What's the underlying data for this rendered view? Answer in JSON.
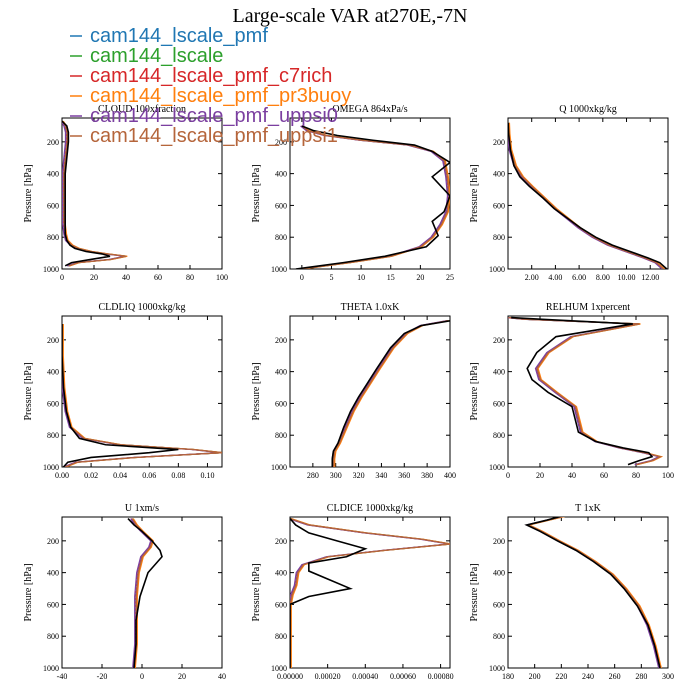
{
  "figure": {
    "title": "Large-scale VAR at270E,-7N"
  },
  "legend": [
    {
      "name": "cam144_lscale_pmf",
      "color": "#1f77b4"
    },
    {
      "name": "cam144_lscale",
      "color": "#2ca02c"
    },
    {
      "name": "cam144_lscale_pmf_c7rich",
      "color": "#d62728"
    },
    {
      "name": "cam144_lscale_pmf_pr3buoy",
      "color": "#ff7f0e"
    },
    {
      "name": "cam144_lscale_pmf_uppsi0",
      "color": "#7b3fa0"
    },
    {
      "name": "cam144_lscale_pmf_uppsi1",
      "color": "#b5653b"
    }
  ],
  "reference_color": "#000000",
  "chart_data": [
    {
      "type": "line",
      "title": "CLOUD 100xfraction",
      "ylabel": "Pressure [hPa]",
      "xlim": [
        0,
        100
      ],
      "xticks": [
        0,
        20,
        40,
        60,
        80,
        100
      ],
      "xticklabels": [
        "0",
        "20",
        "40",
        "60",
        "80",
        "100"
      ],
      "ylim": [
        1000,
        50
      ],
      "yticks": [
        200,
        400,
        600,
        800,
        1000
      ],
      "yticklabels": [
        "200",
        "400",
        "600",
        "800",
        "1000"
      ],
      "x": [
        0,
        2,
        3,
        3,
        2,
        1,
        1,
        1,
        1,
        2,
        3,
        6,
        10,
        18,
        28,
        40,
        30,
        10,
        4
      ],
      "y": [
        70,
        100,
        140,
        200,
        300,
        400,
        500,
        600,
        700,
        780,
        820,
        850,
        870,
        890,
        905,
        920,
        940,
        960,
        980
      ],
      "ref_x": [
        0,
        3,
        4,
        4,
        3,
        2,
        2,
        2,
        2,
        2,
        3,
        5,
        8,
        15,
        25,
        30,
        18,
        6,
        2
      ],
      "ref_y": [
        70,
        100,
        140,
        200,
        300,
        400,
        500,
        600,
        700,
        780,
        820,
        850,
        870,
        890,
        905,
        920,
        940,
        960,
        980
      ]
    },
    {
      "type": "line",
      "title": "OMEGA 864xPa/s",
      "ylabel": "Pressure [hPa]",
      "xlim": [
        -2,
        25
      ],
      "xticks": [
        0,
        5,
        10,
        15,
        20,
        25
      ],
      "xticklabels": [
        "0",
        "5",
        "10",
        "15",
        "20",
        "25"
      ],
      "ylim": [
        1000,
        50
      ],
      "yticks": [
        200,
        400,
        600,
        800,
        1000
      ],
      "yticklabels": [
        "200",
        "400",
        "600",
        "800",
        "1000"
      ],
      "x": [
        0,
        1,
        4,
        10,
        18,
        22,
        24,
        24.5,
        24.8,
        24.5,
        23.5,
        22,
        20,
        15,
        8,
        2,
        0
      ],
      "y": [
        100,
        130,
        160,
        190,
        220,
        260,
        320,
        420,
        540,
        640,
        720,
        800,
        860,
        920,
        960,
        990,
        1000
      ],
      "ref_x": [
        0,
        2,
        6,
        12,
        19,
        22,
        25,
        22,
        25,
        24,
        22,
        23,
        21,
        14,
        7,
        1,
        -1
      ],
      "ref_y": [
        100,
        130,
        160,
        190,
        220,
        260,
        330,
        420,
        540,
        640,
        700,
        790,
        860,
        920,
        960,
        990,
        1000
      ]
    },
    {
      "type": "line",
      "title": "Q 1000xkg/kg",
      "ylabel": "Pressure [hPa]",
      "xlim": [
        0,
        13.5
      ],
      "xticks": [
        2,
        4,
        6,
        8,
        10,
        12
      ],
      "xticklabels": [
        "2.00",
        "4.00",
        "6.00",
        "8.00",
        "10.00",
        "12.00"
      ],
      "ylim": [
        1000,
        50
      ],
      "yticks": [
        200,
        400,
        600,
        800,
        1000
      ],
      "yticklabels": [
        "200",
        "400",
        "600",
        "800",
        "1000"
      ],
      "x": [
        0.01,
        0.05,
        0.2,
        0.6,
        1.2,
        2.0,
        3.0,
        4.0,
        5.0,
        6.0,
        7.2,
        8.5,
        10.0,
        11.5,
        12.5,
        13.1
      ],
      "y": [
        80,
        150,
        250,
        350,
        420,
        480,
        550,
        620,
        680,
        740,
        800,
        850,
        890,
        930,
        960,
        1000
      ],
      "ref_x": [
        0.01,
        0.05,
        0.2,
        0.5,
        1.0,
        1.8,
        2.9,
        3.9,
        5.0,
        6.1,
        7.4,
        8.8,
        10.3,
        11.8,
        12.8,
        13.4
      ],
      "ref_y": [
        80,
        150,
        250,
        350,
        420,
        480,
        550,
        620,
        680,
        740,
        800,
        850,
        890,
        930,
        960,
        1000
      ]
    },
    {
      "type": "line",
      "title": "CLDLIQ 1000xkg/kg",
      "ylabel": "Pressure [hPa]",
      "xlim": [
        0,
        0.11
      ],
      "xticks": [
        0,
        0.02,
        0.04,
        0.06,
        0.08,
        0.1
      ],
      "xticklabels": [
        "0.00",
        "0.02",
        "0.04",
        "0.06",
        "0.08",
        "0.10"
      ],
      "ylim": [
        1000,
        50
      ],
      "yticks": [
        200,
        400,
        600,
        800,
        1000
      ],
      "yticklabels": [
        "200",
        "400",
        "600",
        "800",
        "1000"
      ],
      "x": [
        0,
        0,
        0.001,
        0.003,
        0.006,
        0.015,
        0.04,
        0.09,
        0.11,
        0.05,
        0.01,
        0.002
      ],
      "y": [
        100,
        300,
        500,
        650,
        750,
        820,
        860,
        890,
        910,
        940,
        970,
        1000
      ],
      "ref_x": [
        0,
        0,
        0.001,
        0.003,
        0.006,
        0.012,
        0.03,
        0.08,
        0.06,
        0.02,
        0.004,
        0.001
      ],
      "ref_y": [
        100,
        300,
        500,
        650,
        750,
        820,
        860,
        890,
        910,
        940,
        970,
        1000
      ]
    },
    {
      "type": "line",
      "title": "THETA 1.0xK",
      "ylabel": "Pressure [hPa]",
      "xlim": [
        260,
        400
      ],
      "xticks": [
        280,
        300,
        320,
        340,
        360,
        380,
        400
      ],
      "xticklabels": [
        "280",
        "300",
        "320",
        "340",
        "360",
        "380",
        "400"
      ],
      "ylim": [
        1000,
        50
      ],
      "yticks": [
        200,
        400,
        600,
        800,
        1000
      ],
      "yticklabels": [
        "200",
        "400",
        "600",
        "800",
        "1000"
      ],
      "x": [
        398,
        390,
        375,
        362,
        350,
        338,
        330,
        322,
        315,
        309,
        303,
        299,
        298,
        298
      ],
      "y": [
        80,
        90,
        110,
        160,
        250,
        380,
        470,
        560,
        650,
        750,
        850,
        900,
        950,
        1000
      ],
      "ref_x": [
        400,
        392,
        375,
        360,
        348,
        336,
        328,
        320,
        313,
        307,
        302,
        298,
        297,
        297
      ],
      "ref_y": [
        80,
        90,
        110,
        160,
        250,
        380,
        470,
        560,
        650,
        750,
        850,
        900,
        950,
        1000
      ]
    },
    {
      "type": "line",
      "title": "RELHUM 1xpercent",
      "ylabel": "Pressure [hPa]",
      "xlim": [
        0,
        100
      ],
      "xticks": [
        0,
        20,
        40,
        60,
        80,
        100
      ],
      "xticklabels": [
        "0",
        "20",
        "40",
        "60",
        "80",
        "100"
      ],
      "ylim": [
        1000,
        50
      ],
      "yticks": [
        200,
        400,
        600,
        800,
        1000
      ],
      "yticklabels": [
        "200",
        "400",
        "600",
        "800",
        "1000"
      ],
      "x": [
        0,
        10,
        82,
        40,
        25,
        18,
        20,
        30,
        42,
        44,
        46,
        55,
        70,
        85,
        95,
        90,
        80
      ],
      "y": [
        60,
        70,
        100,
        180,
        280,
        380,
        450,
        530,
        620,
        700,
        780,
        840,
        880,
        910,
        935,
        960,
        985
      ],
      "ref_x": [
        2,
        20,
        78,
        30,
        18,
        12,
        15,
        25,
        40,
        42,
        44,
        55,
        72,
        88,
        90,
        82,
        75
      ],
      "ref_y": [
        60,
        70,
        100,
        180,
        280,
        380,
        450,
        530,
        620,
        700,
        780,
        840,
        880,
        910,
        935,
        960,
        985
      ]
    },
    {
      "type": "line",
      "title": "U 1xm/s",
      "ylabel": "Pressure [hPa]",
      "xlim": [
        -40,
        40
      ],
      "xticks": [
        -40,
        -20,
        0,
        20,
        40
      ],
      "xticklabels": [
        "-40",
        "-20",
        "0",
        "20",
        "40"
      ],
      "ylim": [
        1000,
        50
      ],
      "yticks": [
        200,
        400,
        600,
        800,
        1000
      ],
      "yticklabels": [
        "200",
        "400",
        "600",
        "800",
        "1000"
      ],
      "x": [
        -5,
        -3,
        0,
        5,
        4,
        0,
        -2,
        -3,
        -3,
        -3,
        -4
      ],
      "y": [
        60,
        100,
        140,
        200,
        240,
        300,
        400,
        550,
        700,
        850,
        1000
      ],
      "ref_x": [
        -7,
        -4,
        0,
        5,
        9,
        10,
        3,
        -1,
        -3,
        -3,
        -4
      ],
      "ref_y": [
        60,
        100,
        140,
        200,
        260,
        300,
        400,
        550,
        700,
        850,
        1000
      ]
    },
    {
      "type": "line",
      "title": "CLDICE 1000xkg/kg",
      "ylabel": "Pressure [hPa]",
      "xlim": [
        0,
        0.00085
      ],
      "xticks": [
        0,
        0.0002,
        0.0004,
        0.0006,
        0.0008
      ],
      "xticklabels": [
        "0.00000",
        "0.00020",
        "0.00040",
        "0.00060",
        "0.00080"
      ],
      "ylim": [
        1000,
        50
      ],
      "yticks": [
        200,
        400,
        600,
        800,
        1000
      ],
      "yticklabels": [
        "200",
        "400",
        "600",
        "800",
        "1000"
      ],
      "x": [
        0,
        0.0001,
        0.0004,
        0.0007,
        0.00085,
        0.0005,
        0.0002,
        7e-05,
        4e-05,
        3e-05,
        1e-05,
        0,
        0
      ],
      "y": [
        60,
        100,
        150,
        190,
        220,
        260,
        300,
        350,
        400,
        480,
        540,
        600,
        1000
      ],
      "ref_x": [
        0,
        3e-05,
        0.0001,
        0.00025,
        0.0004,
        0.0003,
        0.0001,
        0.0001,
        0.0002,
        0.00032,
        0.0001,
        0,
        0
      ],
      "ref_y": [
        60,
        100,
        150,
        200,
        250,
        300,
        340,
        390,
        440,
        500,
        550,
        600,
        1000
      ]
    },
    {
      "type": "line",
      "title": "T 1xK",
      "ylabel": "Pressure [hPa]",
      "xlim": [
        180,
        300
      ],
      "xticks": [
        180,
        200,
        220,
        240,
        260,
        280,
        300
      ],
      "xticklabels": [
        "180",
        "200",
        "220",
        "240",
        "260",
        "280",
        "300"
      ],
      "ylim": [
        1000,
        50
      ],
      "yticks": [
        200,
        400,
        600,
        800,
        1000
      ],
      "yticklabels": [
        "200",
        "400",
        "600",
        "800",
        "1000"
      ],
      "x": [
        225,
        210,
        195,
        205,
        218,
        232,
        245,
        258,
        268,
        278,
        285,
        290,
        294
      ],
      "y": [
        40,
        70,
        100,
        140,
        200,
        260,
        330,
        410,
        500,
        610,
        730,
        860,
        1000
      ],
      "ref_x": [
        222,
        209,
        194,
        204,
        217,
        231,
        244,
        257,
        267,
        277,
        285,
        290,
        294
      ],
      "ref_y": [
        40,
        70,
        100,
        140,
        200,
        260,
        330,
        410,
        500,
        610,
        730,
        860,
        1000
      ]
    }
  ]
}
